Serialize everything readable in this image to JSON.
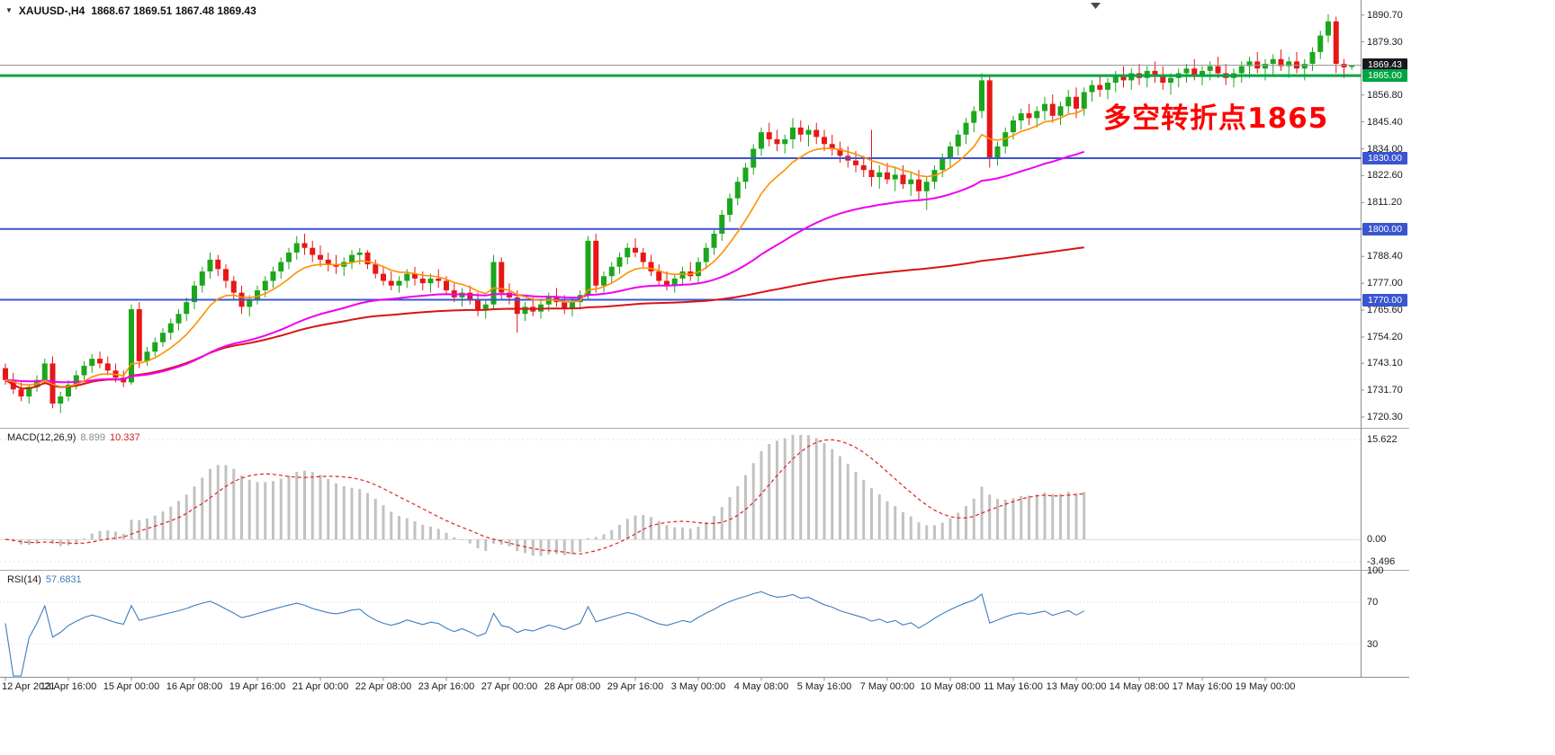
{
  "header": {
    "symbol_period": "XAUUSD-,H4",
    "ohlc": "1868.67 1869.51 1867.48 1869.43"
  },
  "icons": {
    "symbol_dropdown": "▼"
  },
  "annotation": {
    "text": "多空转折点1865",
    "color": "#FF0000"
  },
  "macd_panel": {
    "label": "MACD(12,26,9)",
    "value_main": "8.899",
    "value_signal": "10.337",
    "scale": [
      "15.622",
      "0.00",
      "-3.496"
    ]
  },
  "rsi_panel": {
    "label": "RSI(14)",
    "value": "57.6831",
    "scale": [
      "100",
      "70",
      "30"
    ]
  },
  "price_scale": {
    "ticks": [
      "1890.70",
      "1879.30",
      "1856.80",
      "1845.40",
      "1834.00",
      "1822.60",
      "1811.20",
      "1800.00",
      "1788.40",
      "1777.00",
      "1765.60",
      "1754.20",
      "1743.10",
      "1731.70",
      "1720.30"
    ],
    "badges": [
      {
        "label": "1869.43",
        "price": 1869.43,
        "bg": "#16181e",
        "fg": "#ffffff",
        "name": "current-price-badge"
      },
      {
        "label": "1865.00",
        "price": 1865.0,
        "bg": "#00a443",
        "fg": "#ffffff",
        "name": "level-1865-badge"
      },
      {
        "label": "1830.00",
        "price": 1830.0,
        "bg": "#3a55d0",
        "fg": "#ffffff",
        "name": "level-1830-badge"
      },
      {
        "label": "1800.00",
        "price": 1800.0,
        "bg": "#3a55d0",
        "fg": "#ffffff",
        "name": "level-1800-badge"
      },
      {
        "label": "1770.00",
        "price": 1770.0,
        "bg": "#3a55d0",
        "fg": "#ffffff",
        "name": "level-1770-badge"
      }
    ]
  },
  "time_axis": {
    "labels": [
      "12 Apr 2021",
      "13 Apr 16:00",
      "15 Apr 00:00",
      "16 Apr 08:00",
      "19 Apr 16:00",
      "21 Apr 00:00",
      "22 Apr 08:00",
      "23 Apr 16:00",
      "27 Apr 00:00",
      "28 Apr 08:00",
      "29 Apr 16:00",
      "3 May 00:00",
      "4 May 08:00",
      "5 May 16:00",
      "7 May 00:00",
      "10 May 08:00",
      "11 May 16:00",
      "13 May 00:00",
      "14 May 08:00",
      "17 May 16:00",
      "19 May 00:00"
    ],
    "label_step_bars": 8
  },
  "colors": {
    "up": "#1ca61c",
    "down": "#e81717",
    "divider": "#a8a8a8",
    "current_line": "#999999",
    "macd_hist": "#c2c2c2",
    "macd_signal": "#e02020",
    "rsi_line": "#3c7ebf"
  },
  "chart_data": {
    "type": "candlestick",
    "symbol": "XAUUSD-",
    "period": "H4",
    "title": "XAUUSD-,H4 1868.67 1869.51 1867.48 1869.43",
    "ylim": [
      1718,
      1894
    ],
    "current_price": 1869.43,
    "indicator_end_index": 137,
    "hlines": [
      {
        "price": 1865.0,
        "color": "#00a443",
        "width": 3
      },
      {
        "price": 1830.0,
        "color": "#3a55d0",
        "width": 2
      },
      {
        "price": 1800.0,
        "color": "#3a55d0",
        "width": 2
      },
      {
        "price": 1770.0,
        "color": "#3a55d0",
        "width": 2
      }
    ],
    "moving_averages": [
      {
        "name": "ma-slow",
        "method": "cum_mean",
        "period": 200,
        "color": "#d81414",
        "width": 2
      },
      {
        "name": "ma-mid",
        "method": "ema",
        "period": 45,
        "color": "#f000f0",
        "width": 2
      },
      {
        "name": "ma-fast",
        "method": "ema",
        "period": 10,
        "color": "#ff9000",
        "width": 1.6
      }
    ],
    "macd": {
      "fast": 12,
      "slow": 26,
      "signal": 9,
      "ylim": [
        -4.4,
        16.9
      ]
    },
    "rsi": {
      "period": 14,
      "levels": [
        70,
        30
      ],
      "ylim": [
        0,
        100
      ]
    },
    "candles": [
      [
        1741,
        1743,
        1734,
        1736
      ],
      [
        1736,
        1739,
        1730,
        1732
      ],
      [
        1732,
        1735,
        1727,
        1729
      ],
      [
        1729,
        1734,
        1726,
        1733
      ],
      [
        1733,
        1738,
        1731,
        1736
      ],
      [
        1736,
        1745,
        1734,
        1743
      ],
      [
        1743,
        1746,
        1724,
        1726
      ],
      [
        1726,
        1731,
        1722,
        1729
      ],
      [
        1729,
        1736,
        1727,
        1734
      ],
      [
        1734,
        1740,
        1732,
        1738
      ],
      [
        1738,
        1744,
        1736,
        1742
      ],
      [
        1742,
        1747,
        1739,
        1745
      ],
      [
        1745,
        1748,
        1741,
        1743
      ],
      [
        1743,
        1746,
        1738,
        1740
      ],
      [
        1740,
        1743,
        1735,
        1737
      ],
      [
        1737,
        1740,
        1733,
        1735
      ],
      [
        1735,
        1768,
        1734,
        1766
      ],
      [
        1766,
        1769,
        1741,
        1744
      ],
      [
        1744,
        1750,
        1742,
        1748
      ],
      [
        1748,
        1754,
        1746,
        1752
      ],
      [
        1752,
        1758,
        1750,
        1756
      ],
      [
        1756,
        1762,
        1753,
        1760
      ],
      [
        1760,
        1766,
        1757,
        1764
      ],
      [
        1764,
        1771,
        1761,
        1769
      ],
      [
        1769,
        1778,
        1766,
        1776
      ],
      [
        1776,
        1784,
        1773,
        1782
      ],
      [
        1782,
        1790,
        1779,
        1787
      ],
      [
        1787,
        1789,
        1780,
        1783
      ],
      [
        1783,
        1785,
        1775,
        1778
      ],
      [
        1778,
        1780,
        1770,
        1773
      ],
      [
        1773,
        1776,
        1764,
        1767
      ],
      [
        1767,
        1772,
        1763,
        1770
      ],
      [
        1770,
        1776,
        1768,
        1774
      ],
      [
        1774,
        1780,
        1771,
        1778
      ],
      [
        1778,
        1784,
        1775,
        1782
      ],
      [
        1782,
        1788,
        1779,
        1786
      ],
      [
        1786,
        1792,
        1783,
        1790
      ],
      [
        1790,
        1797,
        1787,
        1794
      ],
      [
        1794,
        1798,
        1789,
        1792
      ],
      [
        1792,
        1795,
        1786,
        1789
      ],
      [
        1789,
        1793,
        1784,
        1787
      ],
      [
        1787,
        1790,
        1782,
        1785
      ],
      [
        1785,
        1789,
        1781,
        1784
      ],
      [
        1784,
        1788,
        1780,
        1786
      ],
      [
        1786,
        1791,
        1783,
        1789
      ],
      [
        1789,
        1792,
        1785,
        1790
      ],
      [
        1790,
        1791,
        1783,
        1785
      ],
      [
        1785,
        1787,
        1779,
        1781
      ],
      [
        1781,
        1784,
        1776,
        1778
      ],
      [
        1778,
        1782,
        1774,
        1776
      ],
      [
        1776,
        1780,
        1773,
        1778
      ],
      [
        1778,
        1783,
        1775,
        1781
      ],
      [
        1781,
        1784,
        1776,
        1779
      ],
      [
        1779,
        1782,
        1774,
        1777
      ],
      [
        1777,
        1781,
        1773,
        1779
      ],
      [
        1779,
        1783,
        1775,
        1778
      ],
      [
        1778,
        1780,
        1772,
        1774
      ],
      [
        1774,
        1777,
        1769,
        1771
      ],
      [
        1771,
        1775,
        1767,
        1773
      ],
      [
        1773,
        1776,
        1768,
        1770
      ],
      [
        1770,
        1773,
        1763,
        1766
      ],
      [
        1766,
        1770,
        1762,
        1768
      ],
      [
        1768,
        1789,
        1766,
        1786
      ],
      [
        1786,
        1788,
        1770,
        1773
      ],
      [
        1773,
        1777,
        1768,
        1771
      ],
      [
        1771,
        1774,
        1756,
        1764
      ],
      [
        1764,
        1769,
        1761,
        1767
      ],
      [
        1767,
        1771,
        1763,
        1765
      ],
      [
        1765,
        1770,
        1762,
        1768
      ],
      [
        1768,
        1773,
        1765,
        1771
      ],
      [
        1771,
        1775,
        1767,
        1769
      ],
      [
        1769,
        1772,
        1764,
        1766
      ],
      [
        1766,
        1771,
        1763,
        1769
      ],
      [
        1769,
        1774,
        1766,
        1772
      ],
      [
        1772,
        1797,
        1770,
        1795
      ],
      [
        1795,
        1798,
        1773,
        1776
      ],
      [
        1776,
        1782,
        1773,
        1780
      ],
      [
        1780,
        1786,
        1777,
        1784
      ],
      [
        1784,
        1790,
        1781,
        1788
      ],
      [
        1788,
        1794,
        1785,
        1792
      ],
      [
        1792,
        1796,
        1788,
        1790
      ],
      [
        1790,
        1792,
        1784,
        1786
      ],
      [
        1786,
        1789,
        1780,
        1782
      ],
      [
        1782,
        1785,
        1776,
        1778
      ],
      [
        1778,
        1782,
        1774,
        1776
      ],
      [
        1776,
        1781,
        1773,
        1779
      ],
      [
        1779,
        1784,
        1776,
        1782
      ],
      [
        1782,
        1786,
        1778,
        1780
      ],
      [
        1780,
        1788,
        1777,
        1786
      ],
      [
        1786,
        1794,
        1783,
        1792
      ],
      [
        1792,
        1800,
        1789,
        1798
      ],
      [
        1798,
        1808,
        1795,
        1806
      ],
      [
        1806,
        1815,
        1803,
        1813
      ],
      [
        1813,
        1822,
        1810,
        1820
      ],
      [
        1820,
        1828,
        1817,
        1826
      ],
      [
        1826,
        1836,
        1823,
        1834
      ],
      [
        1834,
        1843,
        1831,
        1841
      ],
      [
        1841,
        1845,
        1835,
        1838
      ],
      [
        1838,
        1842,
        1833,
        1836
      ],
      [
        1836,
        1840,
        1832,
        1838
      ],
      [
        1838,
        1847,
        1834,
        1843
      ],
      [
        1843,
        1846,
        1837,
        1840
      ],
      [
        1840,
        1844,
        1835,
        1842
      ],
      [
        1842,
        1845,
        1836,
        1839
      ],
      [
        1839,
        1842,
        1833,
        1836
      ],
      [
        1836,
        1840,
        1831,
        1834
      ],
      [
        1834,
        1837,
        1828,
        1831
      ],
      [
        1831,
        1835,
        1826,
        1829
      ],
      [
        1829,
        1833,
        1824,
        1827
      ],
      [
        1827,
        1831,
        1822,
        1825
      ],
      [
        1825,
        1842,
        1818,
        1822
      ],
      [
        1822,
        1827,
        1817,
        1824
      ],
      [
        1824,
        1828,
        1819,
        1821
      ],
      [
        1821,
        1826,
        1816,
        1823
      ],
      [
        1823,
        1827,
        1817,
        1819
      ],
      [
        1819,
        1824,
        1814,
        1821
      ],
      [
        1821,
        1825,
        1812,
        1816
      ],
      [
        1816,
        1822,
        1808,
        1820
      ],
      [
        1820,
        1827,
        1817,
        1825
      ],
      [
        1825,
        1832,
        1822,
        1830
      ],
      [
        1830,
        1837,
        1826,
        1835
      ],
      [
        1835,
        1842,
        1831,
        1840
      ],
      [
        1840,
        1847,
        1836,
        1845
      ],
      [
        1845,
        1852,
        1841,
        1850
      ],
      [
        1850,
        1866,
        1847,
        1863
      ],
      [
        1863,
        1865,
        1826,
        1830
      ],
      [
        1830,
        1837,
        1827,
        1835
      ],
      [
        1835,
        1843,
        1832,
        1841
      ],
      [
        1841,
        1848,
        1838,
        1846
      ],
      [
        1846,
        1851,
        1842,
        1849
      ],
      [
        1849,
        1853,
        1844,
        1847
      ],
      [
        1847,
        1852,
        1843,
        1850
      ],
      [
        1850,
        1856,
        1846,
        1853
      ],
      [
        1853,
        1857,
        1845,
        1848
      ],
      [
        1848,
        1854,
        1844,
        1852
      ],
      [
        1852,
        1859,
        1849,
        1856
      ],
      [
        1856,
        1860,
        1847,
        1851
      ],
      [
        1851,
        1860,
        1848,
        1858
      ],
      [
        1858,
        1863,
        1854,
        1861
      ],
      [
        1861,
        1865,
        1856,
        1859
      ],
      [
        1859,
        1864,
        1855,
        1862
      ],
      [
        1862,
        1867,
        1858,
        1865
      ],
      [
        1865,
        1869,
        1860,
        1863
      ],
      [
        1863,
        1868,
        1859,
        1866
      ],
      [
        1866,
        1870,
        1861,
        1864
      ],
      [
        1864,
        1869,
        1860,
        1867
      ],
      [
        1867,
        1871,
        1862,
        1865
      ],
      [
        1865,
        1869,
        1859,
        1862
      ],
      [
        1862,
        1866,
        1857,
        1864
      ],
      [
        1864,
        1868,
        1860,
        1866
      ],
      [
        1866,
        1870,
        1862,
        1868
      ],
      [
        1868,
        1872,
        1863,
        1865
      ],
      [
        1865,
        1869,
        1861,
        1867
      ],
      [
        1867,
        1871,
        1863,
        1869
      ],
      [
        1869,
        1873,
        1864,
        1866
      ],
      [
        1866,
        1870,
        1861,
        1864
      ],
      [
        1864,
        1868,
        1860,
        1866
      ],
      [
        1866,
        1871,
        1862,
        1869
      ],
      [
        1869,
        1873,
        1864,
        1871
      ],
      [
        1871,
        1875,
        1866,
        1868
      ],
      [
        1868,
        1872,
        1863,
        1870
      ],
      [
        1870,
        1874,
        1865,
        1872
      ],
      [
        1872,
        1876,
        1867,
        1869
      ],
      [
        1869,
        1873,
        1864,
        1871
      ],
      [
        1871,
        1875,
        1866,
        1868
      ],
      [
        1868,
        1872,
        1863,
        1870
      ],
      [
        1870,
        1877,
        1867,
        1875
      ],
      [
        1875,
        1884,
        1872,
        1882
      ],
      [
        1882,
        1891,
        1879,
        1888
      ],
      [
        1888,
        1890,
        1866,
        1870
      ],
      [
        1870,
        1872,
        1864,
        1868.5
      ],
      [
        1868.67,
        1869.51,
        1867.48,
        1869.43
      ]
    ]
  }
}
